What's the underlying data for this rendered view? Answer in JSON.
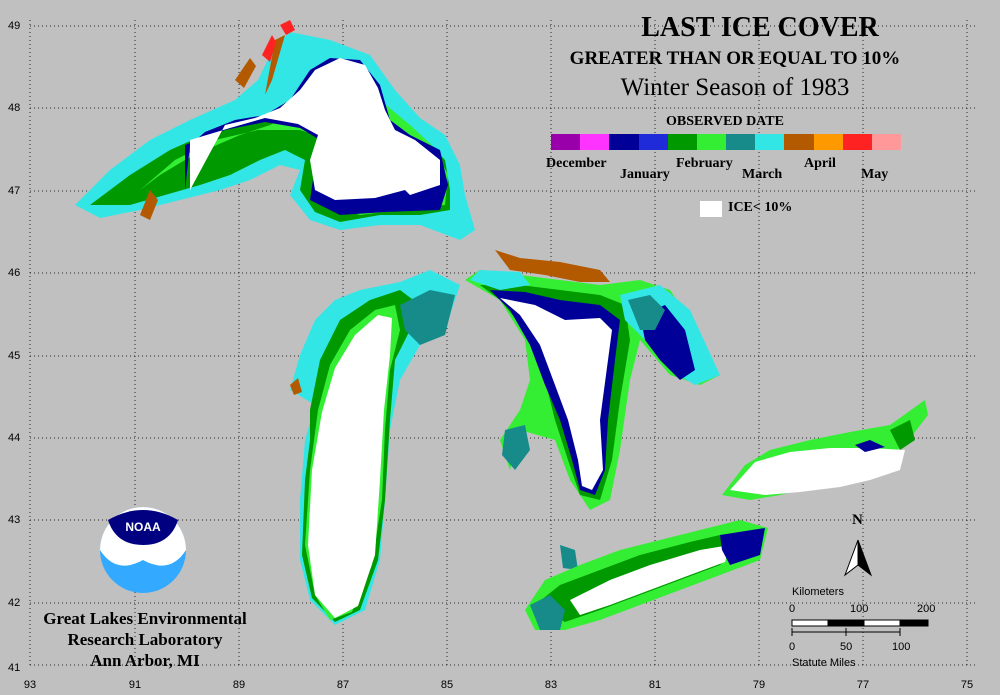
{
  "title": {
    "line1": "LAST ICE COVER",
    "line2": "GREATER THAN OR EQUAL TO 10%",
    "line3": "Winter Season of 1983"
  },
  "legend": {
    "heading": "OBSERVED DATE",
    "months": [
      "December",
      "January",
      "February",
      "March",
      "April",
      "May"
    ],
    "colors": [
      "#9900aa",
      "#ff33ff",
      "#000099",
      "#1f2bd9",
      "#009900",
      "#33ee33",
      "#178a8a",
      "#33e6e6",
      "#b35a00",
      "#ff9900",
      "#ff2222",
      "#ff9999"
    ],
    "ice_label": "ICE< 10%",
    "ice_color": "#ffffff"
  },
  "axes": {
    "latitudes": [
      "49",
      "48",
      "47",
      "46",
      "45",
      "44",
      "43",
      "42",
      "41"
    ],
    "longitudes": [
      "93",
      "91",
      "89",
      "87",
      "85",
      "83",
      "81",
      "79",
      "77",
      "75"
    ]
  },
  "institution": {
    "logo_text": "NOAA",
    "line1": "Great Lakes Environmental",
    "line2": "Research Laboratory",
    "line3": "Ann Arbor, MI"
  },
  "scale": {
    "km_label": "Kilometers",
    "km_ticks": [
      "0",
      "100",
      "200"
    ],
    "mi_label": "Statute Miles",
    "mi_ticks": [
      "0",
      "50",
      "100"
    ]
  },
  "north": "N"
}
